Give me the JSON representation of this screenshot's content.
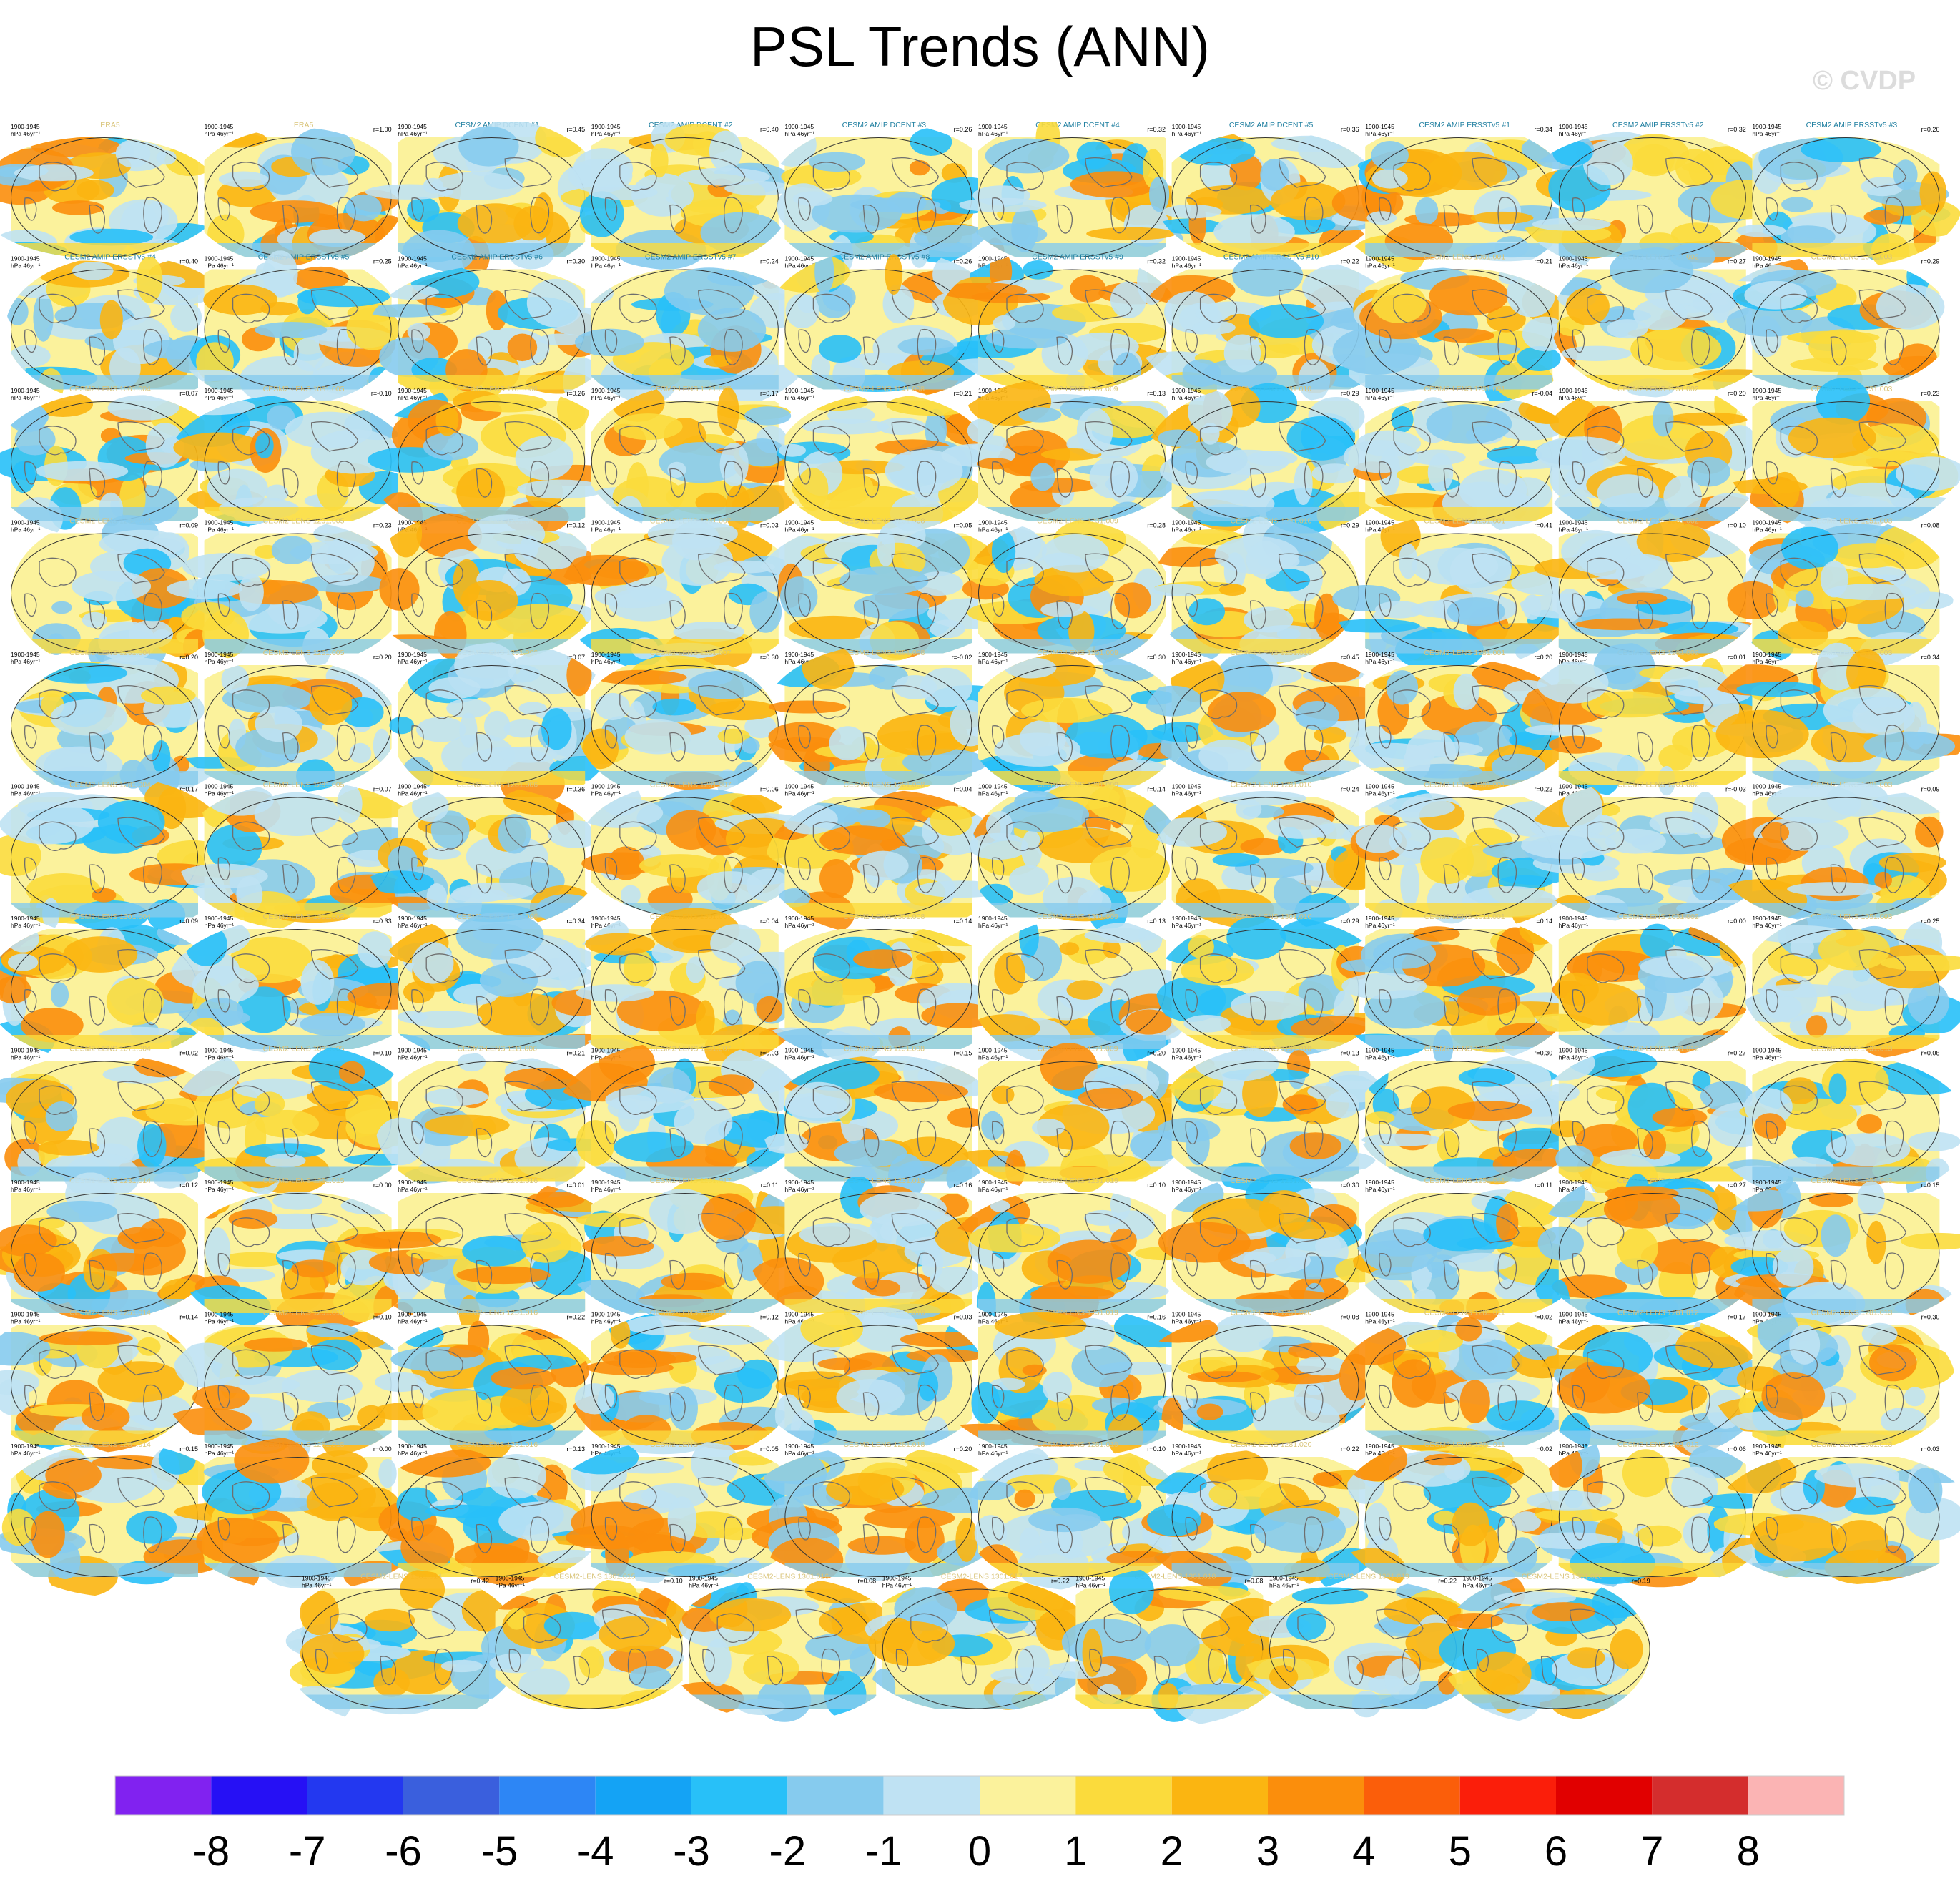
{
  "title": "PSL Trends (ANN)",
  "copyright": "© CVDP",
  "panel_common": {
    "period": "1900-1945",
    "units": "hPa 46yr⁻¹"
  },
  "colors": {
    "obs_title": "#d9c47a",
    "amip_title": "#1f7fa0",
    "lens_title": "#d9c47a",
    "land_outline": "#6e6e6e",
    "map_border": "#333333",
    "base_fill": "#fbf29c"
  },
  "chart_data": {
    "type": "heatmap",
    "description_free": true,
    "panels": [
      {
        "title": "ERA5",
        "r": "",
        "group": "obs"
      },
      {
        "title": "ERA5",
        "r": "r=1.00",
        "group": "obs"
      },
      {
        "title": "CESM2 AMIP DCENT #1",
        "r": "r=0.45",
        "group": "amip"
      },
      {
        "title": "CESM2 AMIP DCENT #2",
        "r": "r=0.40",
        "group": "amip"
      },
      {
        "title": "CESM2 AMIP DCENT #3",
        "r": "r=0.26",
        "group": "amip"
      },
      {
        "title": "CESM2 AMIP DCENT #4",
        "r": "r=0.32",
        "group": "amip"
      },
      {
        "title": "CESM2 AMIP DCENT #5",
        "r": "r=0.36",
        "group": "amip"
      },
      {
        "title": "CESM2 AMIP ERSSTv5 #1",
        "r": "r=0.34",
        "group": "amip"
      },
      {
        "title": "CESM2 AMIP ERSSTv5 #2",
        "r": "r=0.32",
        "group": "amip"
      },
      {
        "title": "CESM2 AMIP ERSSTv5 #3",
        "r": "r=0.26",
        "group": "amip"
      },
      {
        "title": "CESM2 AMIP ERSSTv5 #4",
        "r": "r=0.40",
        "group": "amip"
      },
      {
        "title": "CESM2 AMIP ERSSTv5 #5",
        "r": "r=0.25",
        "group": "amip"
      },
      {
        "title": "CESM2 AMIP ERSSTv5 #6",
        "r": "r=0.30",
        "group": "amip"
      },
      {
        "title": "CESM2 AMIP ERSSTv5 #7",
        "r": "r=0.24",
        "group": "amip"
      },
      {
        "title": "CESM2 AMIP ERSSTv5 #8",
        "r": "r=0.26",
        "group": "amip"
      },
      {
        "title": "CESM2 AMIP ERSSTv5 #9",
        "r": "r=0.32",
        "group": "amip"
      },
      {
        "title": "CESM2 AMIP ERSSTv5 #10",
        "r": "r=0.22",
        "group": "amip"
      },
      {
        "title": "CESM2-LENS 1001.001",
        "r": "r=0.21",
        "group": "lens"
      },
      {
        "title": "CESM2-LENS 1021.002",
        "r": "r=0.27",
        "group": "lens"
      },
      {
        "title": "CESM2-LENS 1041.003",
        "r": "r=0.29",
        "group": "lens"
      },
      {
        "title": "CESM2-LENS 1061.004",
        "r": "r=0.07",
        "group": "lens"
      },
      {
        "title": "CESM2-LENS 1081.005",
        "r": "r=-0.10",
        "group": "lens"
      },
      {
        "title": "CESM2-LENS 1101.006",
        "r": "r=0.26",
        "group": "lens"
      },
      {
        "title": "CESM2-LENS 1121.007",
        "r": "r=0.17",
        "group": "lens"
      },
      {
        "title": "CESM2-LENS 1141.008",
        "r": "r=0.21",
        "group": "lens"
      },
      {
        "title": "CESM2-LENS 1161.009",
        "r": "r=0.13",
        "group": "lens"
      },
      {
        "title": "CESM2-LENS 1181.010",
        "r": "r=0.29",
        "group": "lens"
      },
      {
        "title": "CESM2-LENS 1231.001",
        "r": "r=-0.04",
        "group": "lens"
      },
      {
        "title": "CESM2-LENS 1231.002",
        "r": "r=0.20",
        "group": "lens"
      },
      {
        "title": "CESM2-LENS 1231.003",
        "r": "r=0.23",
        "group": "lens"
      },
      {
        "title": "CESM2-LENS 1231.004",
        "r": "r=0.09",
        "group": "lens"
      },
      {
        "title": "CESM2-LENS 1231.005",
        "r": "r=0.23",
        "group": "lens"
      },
      {
        "title": "CESM2-LENS 1231.006",
        "r": "r=0.12",
        "group": "lens"
      },
      {
        "title": "CESM2-LENS 1231.007",
        "r": "r=0.03",
        "group": "lens"
      },
      {
        "title": "CESM2-LENS 1231.008",
        "r": "r=0.05",
        "group": "lens"
      },
      {
        "title": "CESM2-LENS 1231.009",
        "r": "r=0.28",
        "group": "lens"
      },
      {
        "title": "CESM2-LENS 1231.010",
        "r": "r=0.29",
        "group": "lens"
      },
      {
        "title": "CESM2-LENS 1251.001",
        "r": "r=0.41",
        "group": "lens"
      },
      {
        "title": "CESM2-LENS 1251.002",
        "r": "r=0.10",
        "group": "lens"
      },
      {
        "title": "CESM2-LENS 1251.003",
        "r": "r=0.08",
        "group": "lens"
      },
      {
        "title": "CESM2-LENS 1251.004",
        "r": "r=0.20",
        "group": "lens"
      },
      {
        "title": "CESM2-LENS 1251.005",
        "r": "r=0.20",
        "group": "lens"
      },
      {
        "title": "CESM2-LENS 1251.006",
        "r": "r=0.07",
        "group": "lens"
      },
      {
        "title": "CESM2-LENS 1251.007",
        "r": "r=0.30",
        "group": "lens"
      },
      {
        "title": "CESM2-LENS 1251.008",
        "r": "r=-0.02",
        "group": "lens"
      },
      {
        "title": "CESM2-LENS 1251.009",
        "r": "r=0.30",
        "group": "lens"
      },
      {
        "title": "CESM2-LENS 1251.010",
        "r": "r=0.45",
        "group": "lens"
      },
      {
        "title": "CESM2-LENS 1281.001",
        "r": "r=0.20",
        "group": "lens"
      },
      {
        "title": "CESM2-LENS 1281.002",
        "r": "r=0.01",
        "group": "lens"
      },
      {
        "title": "CESM2-LENS 1281.003",
        "r": "r=0.34",
        "group": "lens"
      },
      {
        "title": "CESM2-LENS 1281.004",
        "r": "r=0.17",
        "group": "lens"
      },
      {
        "title": "CESM2-LENS 1281.005",
        "r": "r=0.07",
        "group": "lens"
      },
      {
        "title": "CESM2-LENS 1281.006",
        "r": "r=0.36",
        "group": "lens"
      },
      {
        "title": "CESM2-LENS 1281.007",
        "r": "r=0.06",
        "group": "lens"
      },
      {
        "title": "CESM2-LENS 1281.008",
        "r": "r=0.04",
        "group": "lens"
      },
      {
        "title": "CESM2-LENS 1281.009",
        "r": "r=0.14",
        "group": "lens"
      },
      {
        "title": "CESM2-LENS 1281.010",
        "r": "r=0.24",
        "group": "lens"
      },
      {
        "title": "CESM2-LENS 1301.001",
        "r": "r=0.22",
        "group": "lens"
      },
      {
        "title": "CESM2-LENS 1301.002",
        "r": "r=-0.03",
        "group": "lens"
      },
      {
        "title": "CESM2-LENS 1301.003",
        "r": "r=0.09",
        "group": "lens"
      },
      {
        "title": "CESM2-LENS 1301.004",
        "r": "r=0.09",
        "group": "lens"
      },
      {
        "title": "CESM2-LENS 1301.005",
        "r": "r=0.33",
        "group": "lens"
      },
      {
        "title": "CESM2-LENS 1301.006",
        "r": "r=0.34",
        "group": "lens"
      },
      {
        "title": "CESM2-LENS 1301.007",
        "r": "r=0.04",
        "group": "lens"
      },
      {
        "title": "CESM2-LENS 1301.008",
        "r": "r=0.14",
        "group": "lens"
      },
      {
        "title": "CESM2-LENS 1301.009",
        "r": "r=0.13",
        "group": "lens"
      },
      {
        "title": "CESM2-LENS 1301.010",
        "r": "r=0.29",
        "group": "lens"
      },
      {
        "title": "CESM2-LENS 1011.001",
        "r": "r=0.14",
        "group": "lens"
      },
      {
        "title": "CESM2-LENS 1031.002",
        "r": "r=0.00",
        "group": "lens"
      },
      {
        "title": "CESM2-LENS 1051.003",
        "r": "r=0.25",
        "group": "lens"
      },
      {
        "title": "CESM2-LENS 1071.004",
        "r": "r=0.02",
        "group": "lens"
      },
      {
        "title": "CESM2-LENS 1091.005",
        "r": "r=0.10",
        "group": "lens"
      },
      {
        "title": "CESM2-LENS 1111.006",
        "r": "r=0.21",
        "group": "lens"
      },
      {
        "title": "CESM2-LENS 1131.007",
        "r": "r=0.03",
        "group": "lens"
      },
      {
        "title": "CESM2-LENS 1151.008",
        "r": "r=0.15",
        "group": "lens"
      },
      {
        "title": "CESM2-LENS 1171.009",
        "r": "r=0.20",
        "group": "lens"
      },
      {
        "title": "CESM2-LENS 1191.010",
        "r": "r=0.13",
        "group": "lens"
      },
      {
        "title": "CESM2-LENS 1231.011",
        "r": "r=0.30",
        "group": "lens"
      },
      {
        "title": "CESM2-LENS 1231.012",
        "r": "r=0.27",
        "group": "lens"
      },
      {
        "title": "CESM2-LENS 1231.013",
        "r": "r=0.06",
        "group": "lens"
      },
      {
        "title": "CESM2-LENS 1231.014",
        "r": "r=0.12",
        "group": "lens"
      },
      {
        "title": "CESM2-LENS 1231.015",
        "r": "r=0.00",
        "group": "lens"
      },
      {
        "title": "CESM2-LENS 1231.016",
        "r": "r=0.01",
        "group": "lens"
      },
      {
        "title": "CESM2-LENS 1231.017",
        "r": "r=0.11",
        "group": "lens"
      },
      {
        "title": "CESM2-LENS 1231.018",
        "r": "r=0.16",
        "group": "lens"
      },
      {
        "title": "CESM2-LENS 1231.019",
        "r": "r=0.10",
        "group": "lens"
      },
      {
        "title": "CESM2-LENS 1231.020",
        "r": "r=0.30",
        "group": "lens"
      },
      {
        "title": "CESM2-LENS 1251.011",
        "r": "r=0.11",
        "group": "lens"
      },
      {
        "title": "CESM2-LENS 1251.012",
        "r": "r=0.27",
        "group": "lens"
      },
      {
        "title": "CESM2-LENS 1251.013",
        "r": "r=0.15",
        "group": "lens"
      },
      {
        "title": "CESM2-LENS 1251.014",
        "r": "r=0.14",
        "group": "lens"
      },
      {
        "title": "CESM2-LENS 1251.015",
        "r": "r=0.10",
        "group": "lens"
      },
      {
        "title": "CESM2-LENS 1251.016",
        "r": "r=0.22",
        "group": "lens"
      },
      {
        "title": "CESM2-LENS 1251.017",
        "r": "r=0.12",
        "group": "lens"
      },
      {
        "title": "CESM2-LENS 1251.018",
        "r": "r=0.03",
        "group": "lens"
      },
      {
        "title": "CESM2-LENS 1251.019",
        "r": "r=0.16",
        "group": "lens"
      },
      {
        "title": "CESM2-LENS 1251.020",
        "r": "r=0.08",
        "group": "lens"
      },
      {
        "title": "CESM2-LENS 1281.011",
        "r": "r=0.02",
        "group": "lens"
      },
      {
        "title": "CESM2-LENS 1281.012",
        "r": "r=0.17",
        "group": "lens"
      },
      {
        "title": "CESM2-LENS 1281.013",
        "r": "r=0.30",
        "group": "lens"
      },
      {
        "title": "CESM2-LENS 1281.014",
        "r": "r=0.15",
        "group": "lens"
      },
      {
        "title": "CESM2-LENS 1281.015",
        "r": "r=0.00",
        "group": "lens"
      },
      {
        "title": "CESM2-LENS 1281.016",
        "r": "r=0.13",
        "group": "lens"
      },
      {
        "title": "CESM2-LENS 1281.017",
        "r": "r=0.05",
        "group": "lens"
      },
      {
        "title": "CESM2-LENS 1281.018",
        "r": "r=0.20",
        "group": "lens"
      },
      {
        "title": "CESM2-LENS 1281.019",
        "r": "r=0.10",
        "group": "lens"
      },
      {
        "title": "CESM2-LENS 1281.020",
        "r": "r=0.22",
        "group": "lens"
      },
      {
        "title": "CESM2-LENS 1301.011",
        "r": "r=0.02",
        "group": "lens"
      },
      {
        "title": "CESM2-LENS 1301.012",
        "r": "r=0.06",
        "group": "lens"
      },
      {
        "title": "CESM2-LENS 1301.013",
        "r": "r=0.03",
        "group": "lens"
      },
      {
        "title": "CESM2-LENS 1301.014",
        "r": "r=0.42",
        "group": "lens"
      },
      {
        "title": "CESM2-LENS 1301.015",
        "r": "r=0.10",
        "group": "lens"
      },
      {
        "title": "CESM2-LENS 1301.016",
        "r": "r=0.08",
        "group": "lens"
      },
      {
        "title": "CESM2-LENS 1301.017",
        "r": "r=0.22",
        "group": "lens"
      },
      {
        "title": "CESM2-LENS 1301.018",
        "r": "r=0.08",
        "group": "lens"
      },
      {
        "title": "CESM2-LENS 1301.019",
        "r": "r=0.22",
        "group": "lens"
      },
      {
        "title": "CESM2-LENS 1301.020",
        "r": "r=0.19",
        "group": "lens"
      }
    ],
    "colorbar": {
      "labels": [
        "-8",
        "-7",
        "-6",
        "-5",
        "-4",
        "-3",
        "-2",
        "-1",
        "0",
        "1",
        "2",
        "3",
        "4",
        "5",
        "6",
        "7",
        "8"
      ],
      "colors": [
        "#8122f0",
        "#2610f5",
        "#2338f0",
        "#3a5fdd",
        "#2d86f5",
        "#14a3f5",
        "#28c0f8",
        "#86cbee",
        "#bfe2f3",
        "#fbf29c",
        "#fbdb3c",
        "#fbb511",
        "#fb8e0c",
        "#fb5e0a",
        "#fb1e0a",
        "#e10000",
        "#d42d2d",
        "#fbb4b4"
      ]
    }
  }
}
